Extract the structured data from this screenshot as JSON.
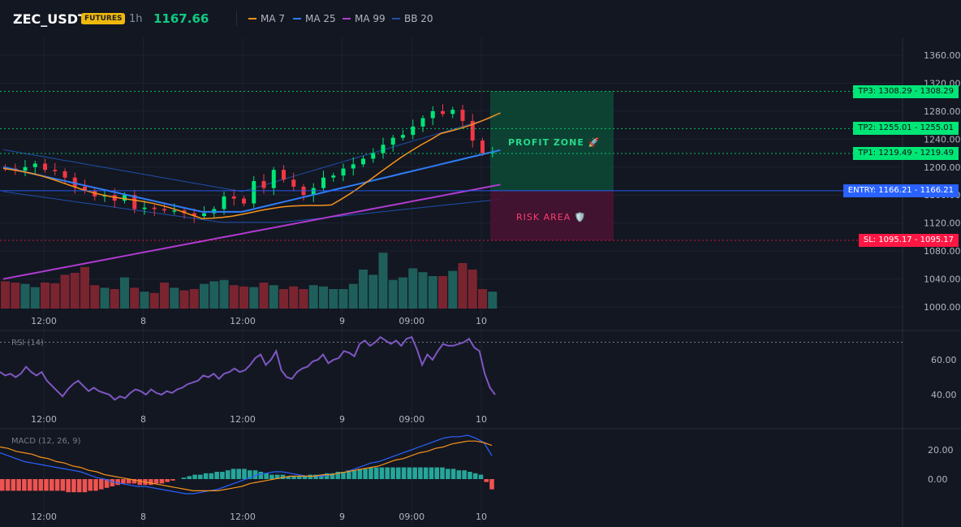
{
  "header": {
    "symbol": "ZEC_USDT",
    "badge": "FUTURES",
    "timeframe": "1h",
    "last_price": "1167.66",
    "indicators": [
      {
        "name": "MA 7",
        "color": "#f7931a"
      },
      {
        "name": "MA 25",
        "color": "#2f7cf6"
      },
      {
        "name": "MA 99",
        "color": "#b03bd1"
      },
      {
        "name": "BB 20",
        "color": "#1e4fa8"
      }
    ]
  },
  "main_axis": {
    "ticks": [
      "1360.00",
      "1320.00",
      "1280.00",
      "1240.00",
      "1200.00",
      "1160.00",
      "1120.00",
      "1080.00",
      "1040.00",
      "1000.00"
    ],
    "tick_values": [
      1360,
      1320,
      1280,
      1240,
      1200,
      1160,
      1120,
      1080,
      1040,
      1000
    ]
  },
  "time_axis": {
    "labels": [
      "12:00",
      "8",
      "12:00",
      "9",
      "09:00",
      "10"
    ],
    "label_candles": [
      4,
      14,
      24,
      34,
      41,
      48
    ]
  },
  "levels": {
    "tp3": {
      "label": "TP3: 1308.29",
      "value": "1308.29",
      "price": 1308.29,
      "color": "#00e676"
    },
    "tp2": {
      "label": "TP2: 1255.01",
      "value": "1255.01",
      "price": 1255.01,
      "color": "#00e676"
    },
    "tp1": {
      "label": "TP1: 1219.49",
      "value": "1219.49",
      "price": 1219.49,
      "color": "#00e676"
    },
    "entry": {
      "label": "ENTRY: 1166.21",
      "value": "1166.21",
      "price": 1166.21,
      "color": "#2962ff"
    },
    "sl": {
      "label": "SL: 1095.17",
      "value": "1095.17",
      "price": 1095.17,
      "color": "#ff1744"
    }
  },
  "zones": {
    "profit": "PROFIT ZONE 🚀",
    "risk": "RISK AREA 🛡️"
  },
  "rsi": {
    "label": "RSI (14)",
    "ticks": [
      "60.00",
      "40.00"
    ],
    "tick_values": [
      60,
      40
    ],
    "overbought": 70,
    "values": [
      53,
      51,
      52,
      50,
      52,
      56,
      53,
      51,
      53,
      48,
      45,
      42,
      39,
      43,
      46,
      48,
      45,
      42,
      44,
      42,
      41,
      40,
      37,
      39,
      38,
      41,
      43,
      42,
      40,
      43,
      41,
      40,
      42,
      41,
      43,
      44,
      46,
      47,
      48,
      51,
      50,
      52,
      49,
      52,
      53,
      55,
      53,
      54,
      57,
      61,
      63,
      57,
      60,
      65,
      54,
      50,
      49,
      53,
      55,
      56,
      59,
      60,
      63,
      58,
      60,
      61,
      65,
      64,
      62,
      69,
      71,
      68,
      70,
      73,
      71,
      69,
      71,
      68,
      72,
      73,
      66,
      57,
      63,
      60,
      65,
      69,
      68,
      68,
      69,
      70,
      72,
      67,
      65,
      52,
      44,
      40
    ],
    "color": "#7e57c2"
  },
  "macd": {
    "label": "MACD (12, 26, 9)",
    "ticks": [
      "20.00",
      "0.00"
    ],
    "tick_values": [
      20,
      0
    ],
    "histogram": [
      -8,
      -8,
      -8,
      -8,
      -8,
      -8,
      -8,
      -8,
      -8,
      -8,
      -8,
      -8,
      -9,
      -9,
      -9,
      -9,
      -8,
      -8,
      -7,
      -6,
      -5,
      -4,
      -3,
      -3,
      -3,
      -4,
      -4,
      -4,
      -3,
      -3,
      -2,
      -1,
      0,
      1,
      2,
      3,
      3,
      4,
      4,
      5,
      5,
      6,
      7,
      7,
      7,
      6,
      6,
      5,
      4,
      3,
      3,
      3,
      2,
      2,
      2,
      2,
      3,
      3,
      3,
      4,
      4,
      5,
      5,
      6,
      6,
      7,
      7,
      8,
      8,
      8,
      8,
      8,
      8,
      8,
      8,
      8,
      8,
      8,
      8,
      8,
      8,
      7,
      7,
      6,
      6,
      5,
      4,
      3,
      -2,
      -7
    ],
    "macd_line": [
      18,
      16,
      14,
      12,
      11,
      10,
      9,
      8,
      7,
      6,
      5,
      3,
      1,
      0,
      -2,
      -3,
      -4,
      -5,
      -5,
      -6,
      -7,
      -8,
      -9,
      -10,
      -10,
      -9,
      -8,
      -7,
      -5,
      -3,
      -1,
      1,
      3,
      4,
      5,
      5,
      4,
      3,
      2,
      2,
      2,
      3,
      4,
      5,
      7,
      9,
      11,
      12,
      14,
      16,
      18,
      20,
      22,
      24,
      26,
      28,
      29,
      29,
      30,
      28,
      25,
      16
    ],
    "signal_line": [
      22,
      21,
      19,
      18,
      17,
      15,
      14,
      12,
      11,
      9,
      8,
      6,
      5,
      3,
      2,
      1,
      0,
      -1,
      -2,
      -3,
      -4,
      -5,
      -6,
      -7,
      -8,
      -8,
      -8,
      -8,
      -7,
      -6,
      -5,
      -3,
      -2,
      -1,
      0,
      1,
      2,
      2,
      2,
      2,
      3,
      3,
      4,
      5,
      6,
      7,
      8,
      9,
      11,
      13,
      14,
      16,
      18,
      19,
      21,
      22,
      24,
      25,
      26,
      26,
      25,
      23
    ],
    "macd_color": "#2962ff",
    "signal_color": "#f7931a"
  },
  "colors": {
    "up": "#00e676",
    "down": "#f23645",
    "vol_up": "#1f5f5b",
    "vol_down": "#7a2430",
    "grid": "#1e2230",
    "bg": "#131722"
  }
}
